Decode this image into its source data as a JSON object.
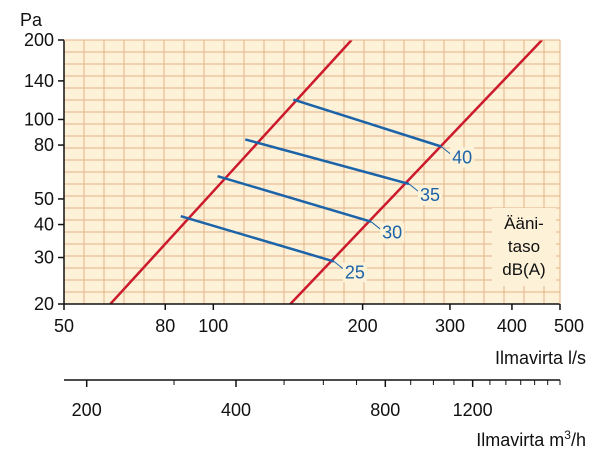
{
  "chart_data": {
    "type": "line",
    "x_scale": "log",
    "y_scale": "log",
    "xlim": [
      50,
      500
    ],
    "ylim": [
      20,
      200
    ],
    "grid": true,
    "y_unit": "Pa",
    "x_label": "Ilmavirta l/s",
    "x2_label_main": "Ilmavirta m",
    "x2_label_sup": "3",
    "x2_label_end": "/h",
    "y_ticks": [
      20,
      30,
      40,
      50,
      80,
      100,
      140,
      200
    ],
    "x_ticks": [
      50,
      80,
      100,
      200,
      300,
      400,
      500
    ],
    "x2_ticks": [
      200,
      400,
      800,
      1200
    ],
    "boundary_lines": [
      {
        "points": [
          [
            62,
            20
          ],
          [
            190,
            200
          ]
        ]
      },
      {
        "points": [
          [
            143,
            20
          ],
          [
            460,
            200
          ]
        ]
      }
    ],
    "sound_level_lines": [
      {
        "label": "25",
        "points": [
          [
            86,
            43
          ],
          [
            175,
            29
          ]
        ]
      },
      {
        "label": "30",
        "points": [
          [
            102,
            61
          ],
          [
            208,
            41
          ]
        ]
      },
      {
        "label": "35",
        "points": [
          [
            116,
            84
          ],
          [
            248,
            57
          ]
        ]
      },
      {
        "label": "40",
        "points": [
          [
            145,
            119
          ],
          [
            288,
            79
          ]
        ]
      }
    ],
    "legend_lines": [
      "Ääni-",
      "taso",
      "dB(A)"
    ],
    "colors": {
      "background": "#fdf1d8",
      "grid": "#e2b48a",
      "boundary": "#cc1a2c",
      "sound": "#1c63a8",
      "label": "#1c63a8"
    }
  }
}
